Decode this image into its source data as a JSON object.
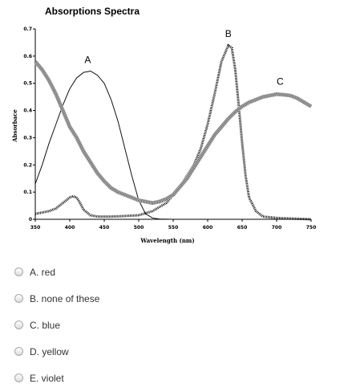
{
  "chart_data": {
    "type": "line",
    "title": "Absorptions Spectra",
    "xlabel": "Wavelength (nm)",
    "ylabel": "Absorbace",
    "xlim": [
      350,
      750
    ],
    "ylim": [
      0,
      0.7
    ],
    "x_ticks": [
      350,
      400,
      450,
      500,
      550,
      600,
      650,
      700,
      750
    ],
    "y_ticks": [
      0,
      0.1,
      0.2,
      0.3,
      0.4,
      0.5,
      0.6,
      0.7
    ],
    "grid": false,
    "legend": "none",
    "series": [
      {
        "name": "A",
        "label_at": [
          426,
          0.575
        ],
        "points": [
          [
            350,
            0.13
          ],
          [
            360,
            0.2
          ],
          [
            370,
            0.28
          ],
          [
            380,
            0.35
          ],
          [
            390,
            0.42
          ],
          [
            400,
            0.48
          ],
          [
            410,
            0.52
          ],
          [
            420,
            0.54
          ],
          [
            430,
            0.545
          ],
          [
            440,
            0.53
          ],
          [
            450,
            0.5
          ],
          [
            460,
            0.44
          ],
          [
            470,
            0.36
          ],
          [
            480,
            0.26
          ],
          [
            490,
            0.16
          ],
          [
            500,
            0.07
          ],
          [
            510,
            0.02
          ],
          [
            520,
            0.005
          ],
          [
            530,
            0.001
          ],
          [
            550,
            0.0
          ]
        ]
      },
      {
        "name": "B",
        "label_at": [
          630,
          0.67
        ],
        "points": [
          [
            350,
            0.02
          ],
          [
            360,
            0.025
          ],
          [
            370,
            0.03
          ],
          [
            380,
            0.04
          ],
          [
            390,
            0.06
          ],
          [
            400,
            0.08
          ],
          [
            405,
            0.085
          ],
          [
            410,
            0.08
          ],
          [
            415,
            0.06
          ],
          [
            420,
            0.035
          ],
          [
            430,
            0.015
          ],
          [
            440,
            0.01
          ],
          [
            460,
            0.01
          ],
          [
            480,
            0.012
          ],
          [
            500,
            0.015
          ],
          [
            520,
            0.03
          ],
          [
            540,
            0.06
          ],
          [
            560,
            0.12
          ],
          [
            570,
            0.16
          ],
          [
            580,
            0.2
          ],
          [
            590,
            0.26
          ],
          [
            600,
            0.35
          ],
          [
            610,
            0.46
          ],
          [
            620,
            0.58
          ],
          [
            630,
            0.64
          ],
          [
            635,
            0.63
          ],
          [
            640,
            0.55
          ],
          [
            645,
            0.42
          ],
          [
            650,
            0.28
          ],
          [
            655,
            0.16
          ],
          [
            660,
            0.08
          ],
          [
            670,
            0.03
          ],
          [
            680,
            0.01
          ],
          [
            700,
            0.005
          ],
          [
            750,
            0.0
          ]
        ]
      },
      {
        "name": "C",
        "label_at": [
          705,
          0.495
        ],
        "points": [
          [
            350,
            0.58
          ],
          [
            360,
            0.55
          ],
          [
            370,
            0.51
          ],
          [
            380,
            0.46
          ],
          [
            390,
            0.4
          ],
          [
            400,
            0.34
          ],
          [
            410,
            0.3
          ],
          [
            420,
            0.25
          ],
          [
            430,
            0.21
          ],
          [
            440,
            0.17
          ],
          [
            450,
            0.14
          ],
          [
            460,
            0.115
          ],
          [
            470,
            0.1
          ],
          [
            480,
            0.09
          ],
          [
            490,
            0.08
          ],
          [
            500,
            0.07
          ],
          [
            510,
            0.065
          ],
          [
            520,
            0.06
          ],
          [
            530,
            0.065
          ],
          [
            540,
            0.075
          ],
          [
            550,
            0.09
          ],
          [
            560,
            0.12
          ],
          [
            570,
            0.15
          ],
          [
            580,
            0.19
          ],
          [
            590,
            0.23
          ],
          [
            600,
            0.27
          ],
          [
            610,
            0.31
          ],
          [
            620,
            0.34
          ],
          [
            630,
            0.37
          ],
          [
            640,
            0.395
          ],
          [
            650,
            0.415
          ],
          [
            660,
            0.43
          ],
          [
            670,
            0.44
          ],
          [
            680,
            0.45
          ],
          [
            690,
            0.455
          ],
          [
            700,
            0.46
          ],
          [
            710,
            0.458
          ],
          [
            720,
            0.455
          ],
          [
            730,
            0.445
          ],
          [
            740,
            0.43
          ],
          [
            750,
            0.415
          ]
        ]
      }
    ]
  },
  "options": [
    {
      "label": "A. red"
    },
    {
      "label": "B. none of these"
    },
    {
      "label": "C. blue"
    },
    {
      "label": "D. yellow"
    },
    {
      "label": "E. violet"
    }
  ]
}
